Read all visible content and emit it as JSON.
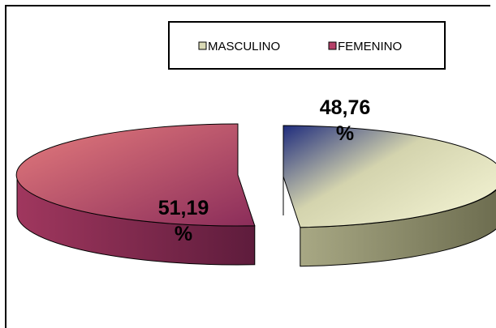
{
  "chart_data": {
    "type": "pie",
    "style": "3d-exploded",
    "categories": [
      "MASCULINO",
      "FEMENINO"
    ],
    "values": [
      48.76,
      51.19
    ],
    "data_labels": [
      "48,76\n%",
      "51,19\n%"
    ],
    "colors": {
      "masculino": {
        "top_light": "#F2F2D2",
        "top_mid": "#D4D4AE",
        "top_dark": "#1F2C7D",
        "side_light": "#A8A884",
        "side_dark": "#6B6B4E"
      },
      "femenino": {
        "top_light": "#E57C7D",
        "top_dark": "#8B2D5A",
        "side_light": "#A0375E",
        "side_dark": "#5E1C3C"
      }
    },
    "legend": {
      "placement": "top",
      "entries": [
        {
          "label": "MASCULINO",
          "color": "#D9D9B5"
        },
        {
          "label": "FEMENINO",
          "color": "#B54068"
        }
      ]
    },
    "title": ""
  }
}
